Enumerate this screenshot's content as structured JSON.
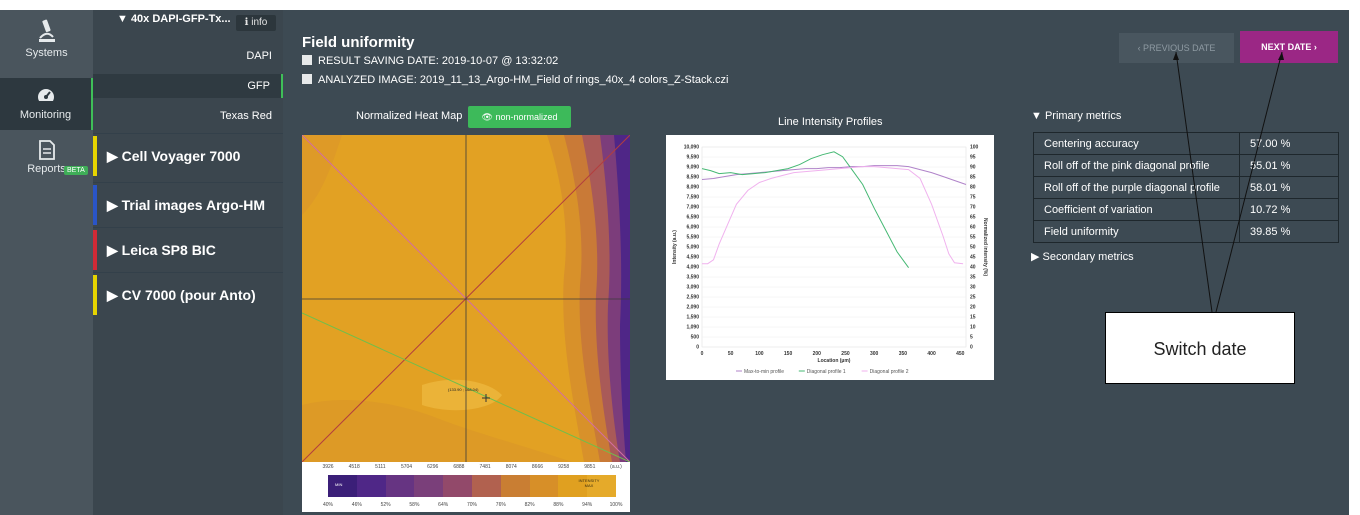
{
  "nav": {
    "systems_label": "Systems",
    "monitoring_label": "Monitoring",
    "reports_label": "Reports",
    "beta_badge": "BETA"
  },
  "systems_panel": {
    "selected_system": "▼ 40x DAPI-GFP-Tx...",
    "info_label": "ℹ info",
    "channels": [
      "DAPI",
      "GFP",
      "Texas Red"
    ],
    "systems": [
      {
        "label": "▶ Cell Voyager 7000",
        "color": "#e6d400"
      },
      {
        "label": "▶ Trial images Argo-HM",
        "color": "#2a55c8"
      },
      {
        "label": "▶ Leica SP8 BIC",
        "color": "#d02a36"
      },
      {
        "label": "▶ CV 7000 (pour Anto)",
        "color": "#e6d400"
      }
    ]
  },
  "header": {
    "title": "Field uniformity",
    "result_saving_date": "RESULT SAVING DATE: 2019-10-07 @ 13:32:02",
    "analyzed_image": "ANALYZED IMAGE: 2019_11_13_Argo-HM_Field of rings_40x_4 colors_Z-Stack.czi",
    "prev_button": "‹ PREVIOUS DATE",
    "next_button": "NEXT DATE ›"
  },
  "heatmap": {
    "label": "Normalized Heat Map",
    "toggle_label": "👁 non-normalized",
    "point_label": "(133.90 ; 168.04)",
    "legend_values": [
      "3926",
      "4518",
      "5111",
      "5704",
      "6296",
      "6888",
      "7481",
      "8074",
      "8666",
      "9258",
      "9851",
      "(a.u.)"
    ],
    "legend_percents": [
      "40%",
      "46%",
      "52%",
      "58%",
      "64%",
      "70%",
      "76%",
      "82%",
      "88%",
      "94%",
      "100%"
    ],
    "legend_min": "MIN",
    "legend_max": "INTENSITY MAX",
    "legend_colors": [
      "#3b1f78",
      "#4f2787",
      "#663482",
      "#7a3f7a",
      "#92496a",
      "#b1614f",
      "#c97e33",
      "#d78f28",
      "#e0a020",
      "#e5aa2a"
    ]
  },
  "chart_data": {
    "type": "line",
    "title": "Line Intensity Profiles",
    "xlabel": "Location (µm)",
    "ylabel": "Intensity (a.u.)",
    "ylabel_right": "Normalized intensity (%)",
    "xlim": [
      0,
      460
    ],
    "ylim": [
      0,
      10090
    ],
    "x_ticks": [
      "0",
      "50",
      "100",
      "150",
      "200",
      "250",
      "300",
      "350",
      "400",
      "450"
    ],
    "y_ticks": [
      "0",
      "500",
      "1,090",
      "1,590",
      "2,090",
      "2,590",
      "3,090",
      "3,590",
      "4,090",
      "4,590",
      "5,090",
      "5,590",
      "6,090",
      "6,590",
      "7,090",
      "7,590",
      "8,090",
      "8,590",
      "9,090",
      "9,590",
      "10,090"
    ],
    "y_ticks_right": [
      "0",
      "5",
      "10",
      "15",
      "20",
      "25",
      "30",
      "35",
      "40",
      "45",
      "50",
      "55",
      "60",
      "65",
      "70",
      "75",
      "80",
      "85",
      "90",
      "95",
      "100"
    ],
    "series": [
      {
        "name": "Max-to-min profile",
        "color": "#b083c9",
        "x": [
          0,
          20,
          40,
          60,
          80,
          100,
          120,
          140,
          160,
          180,
          200,
          220,
          240,
          260,
          280,
          300,
          320,
          340,
          360,
          380,
          400,
          420,
          440,
          460
        ],
        "y": [
          8450,
          8500,
          8600,
          8700,
          8750,
          8800,
          8850,
          8900,
          8950,
          9000,
          9000,
          9050,
          9050,
          9100,
          9100,
          9150,
          9150,
          9150,
          9100,
          8950,
          8800,
          8600,
          8400,
          8200
        ]
      },
      {
        "name": "Diagonal profile 1",
        "color": "#45b873",
        "x": [
          0,
          15,
          30,
          50,
          70,
          90,
          110,
          130,
          150,
          170,
          190,
          210,
          230,
          245,
          260,
          280,
          300,
          320,
          340,
          360
        ],
        "y": [
          9000,
          8900,
          8750,
          8800,
          8700,
          8750,
          8800,
          8900,
          9000,
          9200,
          9500,
          9700,
          9850,
          9600,
          9000,
          8200,
          7000,
          5900,
          4800,
          4000
        ]
      },
      {
        "name": "Diagonal profile 2",
        "color": "#f0b2ee",
        "x": [
          0,
          10,
          20,
          30,
          45,
          60,
          80,
          100,
          120,
          140,
          160,
          180,
          200,
          220,
          240,
          260,
          280,
          300,
          320,
          340,
          360,
          380,
          400,
          420,
          430,
          440,
          455
        ],
        "y": [
          4200,
          4200,
          4400,
          5200,
          6200,
          7200,
          7900,
          8300,
          8500,
          8650,
          8800,
          8850,
          8900,
          8950,
          9000,
          9050,
          9100,
          9100,
          9050,
          9000,
          8950,
          8500,
          7200,
          5600,
          4700,
          4250,
          4200
        ]
      }
    ]
  },
  "metrics": {
    "primary_title": "▼ Primary metrics",
    "rows": [
      {
        "name": "Centering accuracy",
        "value": "57.00 %"
      },
      {
        "name": "Roll off of the pink diagonal profile",
        "value": "55.01 %"
      },
      {
        "name": "Roll off of the purple diagonal profile",
        "value": "58.01 %"
      },
      {
        "name": "Coefficient of variation",
        "value": "10.72 %"
      },
      {
        "name": "Field uniformity",
        "value": "39.85 %"
      }
    ],
    "secondary_title": "▶ Secondary metrics"
  },
  "annotation": {
    "label": "Switch date"
  }
}
